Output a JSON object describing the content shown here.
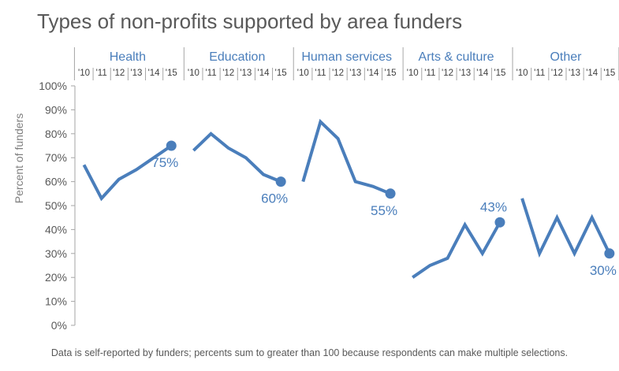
{
  "title": "Types of non-profits supported by area funders",
  "footnote": "Data is self-reported by funders; percents sum to greater than 100 because respondents can make multiple selections.",
  "colors": {
    "line": "#4a7ebb",
    "label": "#4a7ebb",
    "axis": "#a6a6a6",
    "text": "#595959"
  },
  "chart_data": {
    "type": "line",
    "title": "Types of non-profits supported by area funders",
    "ylabel": "Percent of funders",
    "ylim": [
      0,
      100
    ],
    "yticks": [
      "0%",
      "10%",
      "20%",
      "30%",
      "40%",
      "50%",
      "60%",
      "70%",
      "80%",
      "90%",
      "100%"
    ],
    "x_tick_labels": [
      "'10",
      "'11",
      "'12",
      "'13",
      "'14",
      "'15"
    ],
    "grid": false,
    "series": [
      {
        "name": "Health",
        "values": [
          67,
          53,
          61,
          65,
          70,
          75
        ],
        "end_label": "75%"
      },
      {
        "name": "Education",
        "values": [
          73,
          80,
          74,
          70,
          63,
          60
        ],
        "end_label": "60%"
      },
      {
        "name": "Human services",
        "values": [
          60,
          85,
          78,
          60,
          58,
          55
        ],
        "end_label": "55%"
      },
      {
        "name": "Arts & culture",
        "values": [
          20,
          25,
          28,
          42,
          30,
          43
        ],
        "end_label": "43%"
      },
      {
        "name": "Other",
        "values": [
          53,
          30,
          45,
          30,
          45,
          30
        ],
        "end_label": "30%"
      }
    ]
  }
}
